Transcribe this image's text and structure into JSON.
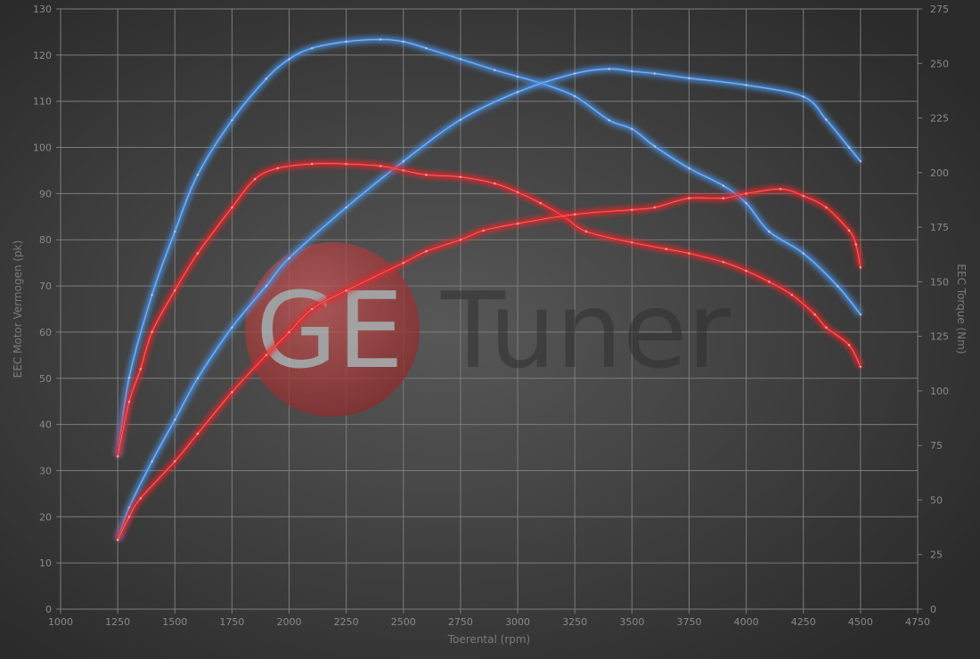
{
  "chart_data": {
    "type": "line",
    "title": "",
    "xlabel": "Toerental (rpm)",
    "ylabel_left": "EEC Motor Vermogen (pk)",
    "ylabel_right": "EEC Torque (Nm)",
    "xlim": [
      1000,
      4750
    ],
    "xticks": [
      1000,
      1250,
      1500,
      1750,
      2000,
      2250,
      2500,
      2750,
      3000,
      3250,
      3500,
      3750,
      4000,
      4250,
      4500,
      4750
    ],
    "ylim_left": [
      0,
      130
    ],
    "yticks_left": [
      0,
      10,
      20,
      30,
      40,
      50,
      60,
      70,
      80,
      90,
      100,
      110,
      120,
      130
    ],
    "ylim_right": [
      0,
      275
    ],
    "yticks_right": [
      0,
      25,
      50,
      75,
      100,
      125,
      150,
      175,
      200,
      225,
      250,
      275
    ],
    "grid": true,
    "legend": "none",
    "colors": {
      "blue": "#4a90e2",
      "red": "#e8262a"
    },
    "series": [
      {
        "color": "blue",
        "axis": "right",
        "quantity": "torque",
        "x": [
          1250,
          1300,
          1400,
          1500,
          1600,
          1750,
          1900,
          2000,
          2100,
          2250,
          2400,
          2500,
          2600,
          2750,
          2900,
          3000,
          3100,
          3250,
          3400,
          3500,
          3600,
          3750,
          3900,
          4000,
          4100,
          4250,
          4400,
          4500
        ],
        "y": [
          70,
          106,
          144,
          173,
          199,
          224,
          243,
          252,
          257,
          260,
          261,
          260,
          257,
          252,
          247,
          244,
          241,
          235,
          224,
          220,
          212,
          202,
          194,
          186,
          173,
          163,
          148,
          135
        ]
      },
      {
        "color": "blue",
        "axis": "left",
        "quantity": "power",
        "x": [
          1250,
          1300,
          1400,
          1500,
          1600,
          1750,
          1900,
          2000,
          2250,
          2500,
          2750,
          3000,
          3250,
          3400,
          3500,
          3600,
          3750,
          4000,
          4250,
          4350,
          4450,
          4500
        ],
        "y": [
          15,
          22,
          32,
          41,
          50,
          61,
          70,
          76,
          87,
          97,
          106,
          112,
          116,
          117,
          116.5,
          116,
          115,
          113.5,
          111,
          106,
          100,
          97
        ]
      },
      {
        "color": "red",
        "axis": "right",
        "quantity": "torque",
        "x": [
          1250,
          1300,
          1350,
          1400,
          1500,
          1600,
          1750,
          1850,
          1950,
          2100,
          2250,
          2400,
          2500,
          2600,
          2750,
          2900,
          3000,
          3100,
          3200,
          3300,
          3500,
          3650,
          3750,
          3900,
          4000,
          4100,
          4200,
          4300,
          4350,
          4450,
          4500
        ],
        "y": [
          70,
          95,
          110,
          127,
          146,
          163,
          184,
          197,
          202,
          204,
          204,
          203,
          201,
          199,
          198,
          195,
          191,
          186,
          180,
          173,
          168,
          165,
          163,
          159,
          155,
          150,
          144,
          135,
          129,
          121,
          111
        ]
      },
      {
        "color": "red",
        "axis": "left",
        "quantity": "power",
        "x": [
          1250,
          1300,
          1350,
          1500,
          1600,
          1750,
          1900,
          2000,
          2100,
          2250,
          2500,
          2600,
          2750,
          2850,
          3000,
          3250,
          3500,
          3600,
          3750,
          3900,
          4000,
          4150,
          4250,
          4350,
          4450,
          4480,
          4500
        ],
        "y": [
          15,
          20,
          24,
          32,
          38,
          47,
          55,
          60,
          65,
          69,
          75,
          77.5,
          80,
          82,
          83.5,
          85.5,
          86.5,
          87,
          89,
          89,
          90,
          91,
          89.5,
          87,
          82,
          79,
          74
        ]
      }
    ]
  },
  "watermark": {
    "logo_text": "GE",
    "brand_text": "Tuner"
  }
}
